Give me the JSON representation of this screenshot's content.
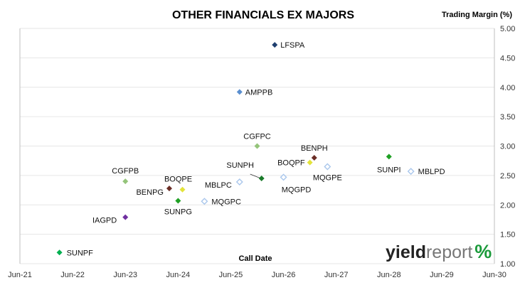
{
  "chart_data": {
    "type": "scatter",
    "title": "OTHER FINANCIALS EX MAJORS",
    "ylabel": "Trading Margin (%)",
    "xlabel": "Call Date",
    "ylim": [
      1.0,
      5.0
    ],
    "yticks": [
      "1.00",
      "1.50",
      "2.00",
      "2.50",
      "3.00",
      "3.50",
      "4.00",
      "4.50",
      "5.00"
    ],
    "xlim": [
      "2021-06",
      "2030-06"
    ],
    "xticks": [
      "Jun-21",
      "Jun-22",
      "Jun-23",
      "Jun-24",
      "Jun-25",
      "Jun-26",
      "Jun-27",
      "Jun-28",
      "Jun-29",
      "Jun-30"
    ],
    "grid": "horizontal",
    "points": [
      {
        "label": "LFSPA",
        "x": "2026-04",
        "y": 4.72,
        "color": "#1f3f6f",
        "style": "filled"
      },
      {
        "label": "AMPPB",
        "x": "2025-08",
        "y": 3.92,
        "color": "#5b8fcf",
        "style": "filled"
      },
      {
        "label": "CGFPC",
        "x": "2025-12",
        "y": 3.0,
        "color": "#94c47a",
        "style": "filled"
      },
      {
        "label": "BENPH",
        "x": "2027-01",
        "y": 2.8,
        "color": "#6b2e26",
        "style": "filled"
      },
      {
        "label": "SUNPI",
        "x": "2028-06",
        "y": 2.82,
        "color": "#1fa024",
        "style": "filled"
      },
      {
        "label": "BOQPF",
        "x": "2026-12",
        "y": 2.72,
        "color": "#e3e33a",
        "style": "filled"
      },
      {
        "label": "MQGPE",
        "x": "2027-04",
        "y": 2.65,
        "color": "#aac7ec",
        "style": "open"
      },
      {
        "label": "MBLPD",
        "x": "2028-11",
        "y": 2.57,
        "color": "#aac7ec",
        "style": "open"
      },
      {
        "label": "SUNPH",
        "x": "2026-01",
        "y": 2.45,
        "color": "#1a7a2a",
        "style": "filled"
      },
      {
        "label": "MQGPD",
        "x": "2026-06",
        "y": 2.47,
        "color": "#aac7ec",
        "style": "open"
      },
      {
        "label": "MBLPC",
        "x": "2025-08",
        "y": 2.39,
        "color": "#aac7ec",
        "style": "open"
      },
      {
        "label": "CGFPB",
        "x": "2023-06",
        "y": 2.4,
        "color": "#94c47a",
        "style": "filled"
      },
      {
        "label": "BENPG",
        "x": "2024-04",
        "y": 2.28,
        "color": "#6b2e26",
        "style": "filled"
      },
      {
        "label": "BOQPE",
        "x": "2024-07",
        "y": 2.26,
        "color": "#e3e33a",
        "style": "filled"
      },
      {
        "label": "SUNPG",
        "x": "2024-06",
        "y": 2.07,
        "color": "#1fa024",
        "style": "filled"
      },
      {
        "label": "MQGPC",
        "x": "2024-12",
        "y": 2.06,
        "color": "#aac7ec",
        "style": "open"
      },
      {
        "label": "IAGPD",
        "x": "2023-06",
        "y": 1.79,
        "color": "#7030a0",
        "style": "filled"
      },
      {
        "label": "SUNPF",
        "x": "2022-03",
        "y": 1.19,
        "color": "#00b050",
        "style": "filled"
      }
    ]
  },
  "logo": {
    "text_bold": "yield",
    "text_light": "report",
    "symbol": "%"
  }
}
